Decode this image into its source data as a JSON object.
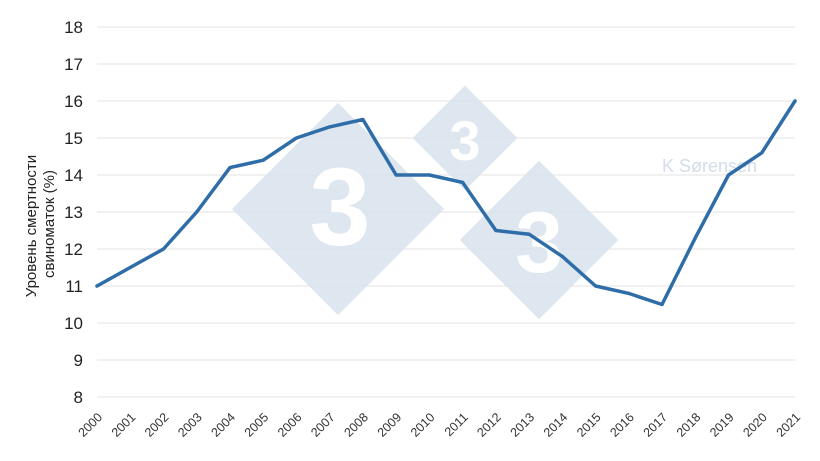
{
  "chart_data": {
    "type": "line",
    "x": [
      "2000",
      "2001",
      "2002",
      "2003",
      "2004",
      "2005",
      "2006",
      "2007",
      "2008",
      "2009",
      "2010",
      "2011",
      "2012",
      "2013",
      "2014",
      "2015",
      "2016",
      "2017",
      "2018",
      "2019",
      "2020",
      "2021"
    ],
    "series": [
      {
        "values": [
          11,
          11.5,
          12,
          13,
          14.2,
          14.4,
          15,
          15.3,
          15.5,
          14,
          14,
          13.8,
          12.5,
          12.4,
          11.8,
          11,
          10.8,
          10.5,
          12.3,
          14,
          14.6,
          16
        ]
      }
    ],
    "title": "",
    "xlabel": "",
    "ylabel_lines": [
      "Уровень смертности",
      "свиноматок (%)"
    ],
    "ylim": [
      8,
      18
    ],
    "yticks": [
      8,
      9,
      10,
      11,
      12,
      13,
      14,
      15,
      16,
      17,
      18
    ],
    "grid": true,
    "line_color": "#2e6da8",
    "watermark": {
      "text": "K Sørensen",
      "logo_glyph": "3"
    }
  }
}
